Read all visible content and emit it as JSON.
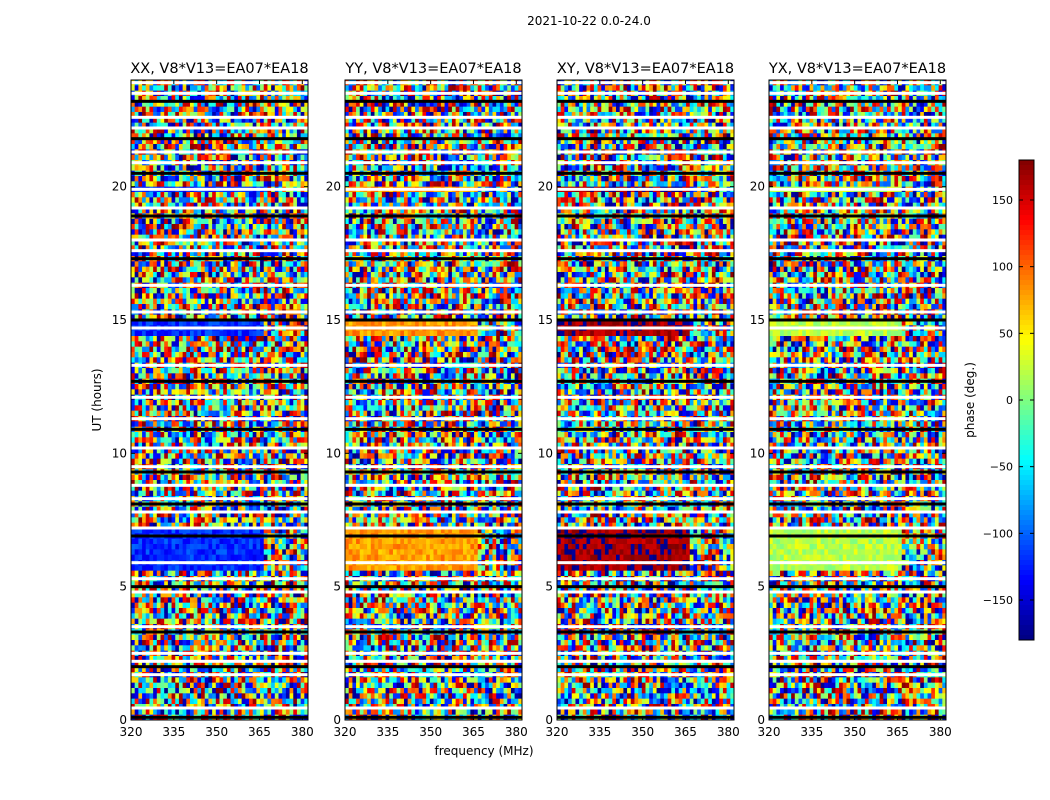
{
  "figure": {
    "suptitle": "2021-10-22 0.0-24.0",
    "xlabel": "frequency (MHz)",
    "ylabel": "UT (hours)"
  },
  "chart_data": {
    "type": "heatmap",
    "x_range": [
      320,
      382
    ],
    "y_range": [
      0,
      24
    ],
    "x_ticks": [
      320,
      335,
      350,
      365,
      380
    ],
    "y_ticks": [
      0,
      5,
      10,
      15,
      20
    ],
    "panels": [
      {
        "title": "XX, V8*V13=EA07*EA18",
        "dominant_phase_deg": -120
      },
      {
        "title": "YY, V8*V13=EA07*EA18",
        "dominant_phase_deg": 80
      },
      {
        "title": "XY, V8*V13=EA07*EA18",
        "dominant_phase_deg": 170
      },
      {
        "title": "YX, V8*V13=EA07*EA18",
        "dominant_phase_deg": 20
      }
    ],
    "colorbar": {
      "label": "phase (deg.)",
      "range": [
        -180,
        180
      ],
      "ticks": [
        150,
        100,
        50,
        0,
        -50,
        -100,
        -150
      ],
      "colormap": "jet"
    },
    "flagged_ut_hours": [
      0.1,
      0.45,
      1.7,
      2.0,
      2.2,
      2.5,
      3.3,
      3.5,
      4.8,
      5.0,
      5.3,
      5.9,
      6.9,
      7.2,
      7.8,
      8.1,
      8.3,
      8.8,
      9.3,
      9.5,
      10.2,
      10.9,
      11.3,
      12.1,
      12.7,
      13.3,
      14.7,
      15.0,
      15.3,
      16.3,
      17.3,
      17.6,
      18.0,
      18.9,
      19.2,
      19.9,
      20.5,
      20.9,
      21.3,
      21.8,
      22.2,
      22.6,
      23.2,
      23.5,
      23.9
    ]
  }
}
